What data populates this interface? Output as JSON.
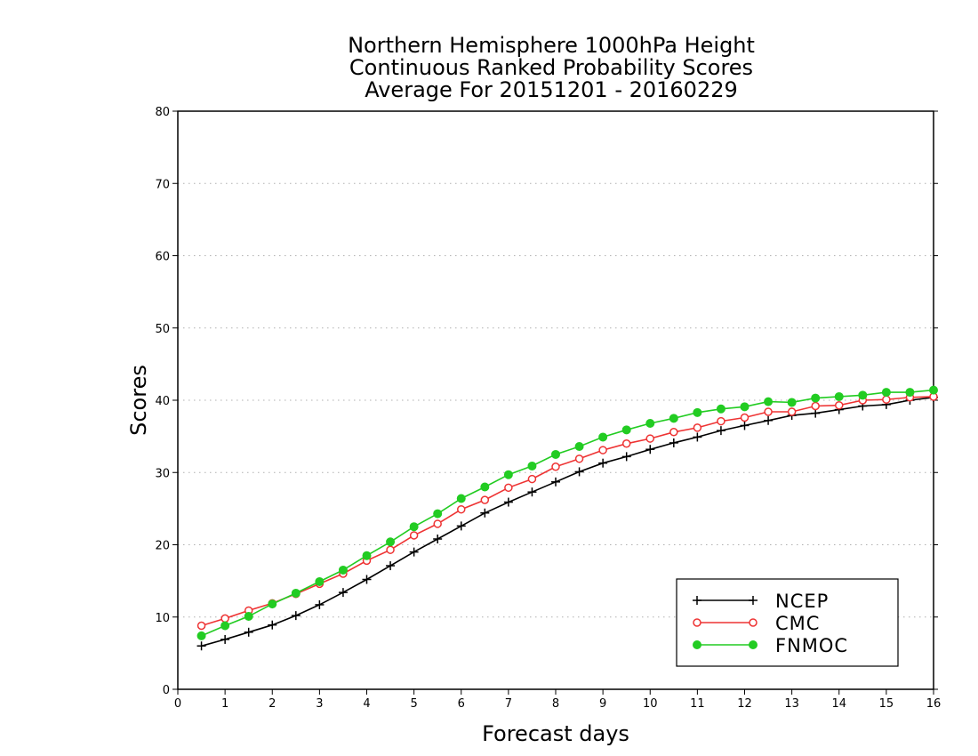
{
  "chart_data": {
    "type": "line",
    "title": [
      "Northern Hemisphere 1000hPa Height",
      "Continuous Ranked Probability Scores",
      "Average For 20151201 - 20160229"
    ],
    "xlabel": "Forecast days",
    "ylabel": "Scores",
    "xlim": [
      0,
      16
    ],
    "ylim": [
      0,
      80
    ],
    "x_ticks": [
      0,
      1,
      2,
      3,
      4,
      5,
      6,
      7,
      8,
      9,
      10,
      11,
      12,
      13,
      14,
      15,
      16
    ],
    "y_ticks": [
      0,
      10,
      20,
      30,
      40,
      50,
      60,
      70,
      80
    ],
    "grid": "horizontal dotted",
    "legend_position": "bottom-right",
    "x": [
      0.5,
      1,
      1.5,
      2,
      2.5,
      3,
      3.5,
      4,
      4.5,
      5,
      5.5,
      6,
      6.5,
      7,
      7.5,
      8,
      8.5,
      9,
      9.5,
      10,
      10.5,
      11,
      11.5,
      12,
      12.5,
      13,
      13.5,
      14,
      14.5,
      15,
      15.5,
      16
    ],
    "series": [
      {
        "name": "NCEP",
        "color": "#000000",
        "marker": "plus",
        "values": [
          6.0,
          6.9,
          7.9,
          8.9,
          10.2,
          11.7,
          13.4,
          15.2,
          17.1,
          19.0,
          20.8,
          22.6,
          24.4,
          25.9,
          27.3,
          28.7,
          30.1,
          31.3,
          32.2,
          33.2,
          34.1,
          34.9,
          35.8,
          36.5,
          37.2,
          37.9,
          38.2,
          38.7,
          39.2,
          39.4,
          40.0,
          40.4
        ]
      },
      {
        "name": "CMC",
        "color": "#ee3333",
        "marker": "open-circle",
        "values": [
          8.8,
          9.8,
          10.9,
          11.9,
          13.2,
          14.6,
          16.0,
          17.8,
          19.3,
          21.3,
          22.9,
          24.9,
          26.2,
          27.9,
          29.1,
          30.8,
          31.9,
          33.1,
          34.0,
          34.7,
          35.6,
          36.2,
          37.1,
          37.6,
          38.4,
          38.4,
          39.2,
          39.3,
          40.0,
          40.1,
          40.4,
          40.5
        ]
      },
      {
        "name": "FNMOC",
        "color": "#22cc22",
        "marker": "filled-circle",
        "values": [
          7.4,
          8.8,
          10.1,
          11.8,
          13.3,
          14.9,
          16.5,
          18.5,
          20.4,
          22.5,
          24.3,
          26.4,
          28.0,
          29.7,
          30.9,
          32.5,
          33.6,
          34.9,
          35.9,
          36.8,
          37.5,
          38.3,
          38.8,
          39.1,
          39.8,
          39.7,
          40.3,
          40.5,
          40.7,
          41.1,
          41.1,
          41.4
        ]
      }
    ]
  }
}
